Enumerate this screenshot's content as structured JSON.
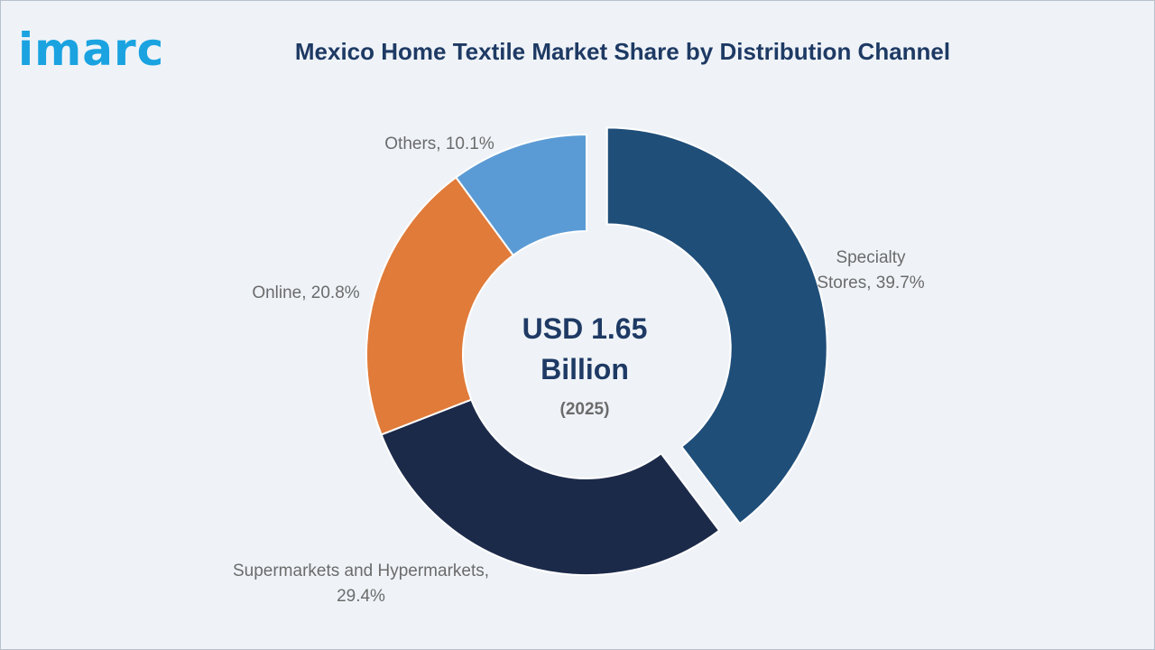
{
  "header": {
    "logo": "imarc",
    "title": "Mexico Home Textile Market Share by Distribution Channel"
  },
  "chart_data": {
    "type": "pie",
    "variant": "donut",
    "title": "Mexico Home Textile Market Share by Distribution Channel",
    "center_text": {
      "line1": "USD 1.65",
      "line2": "Billion",
      "line3": "(2025)"
    },
    "slices": [
      {
        "name": "Specialty Stores",
        "value": 39.7,
        "color": "#1f4e79",
        "exploded": true,
        "label_lines": [
          "Specialty",
          "Stores, 39.7%"
        ]
      },
      {
        "name": "Supermarkets and Hypermarkets",
        "value": 29.4,
        "color": "#1c2a4a",
        "exploded": false,
        "label_lines": [
          "Supermarkets and Hypermarkets,",
          "29.4%"
        ]
      },
      {
        "name": "Online",
        "value": 20.8,
        "color": "#e07b39",
        "exploded": false,
        "label_lines": [
          "Online, 20.8%"
        ]
      },
      {
        "name": "Others",
        "value": 10.1,
        "color": "#5b9bd5",
        "exploded": false,
        "label_lines": [
          "Others, 10.1%"
        ]
      }
    ],
    "legend": "none"
  }
}
